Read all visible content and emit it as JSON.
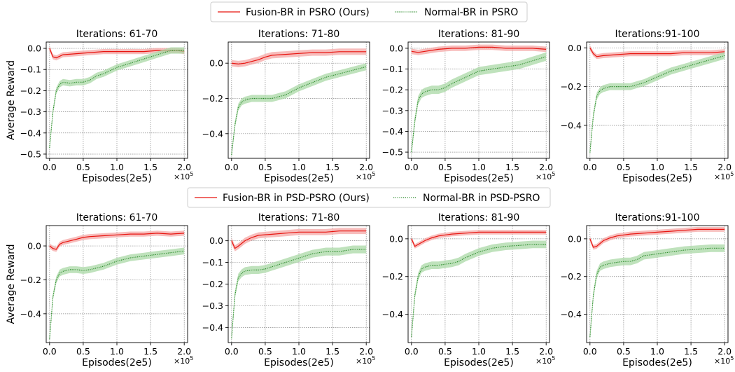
{
  "legends": [
    {
      "entries": [
        {
          "label": "Fusion-BR in PSRO (Ours)",
          "color": "#e8140f",
          "style": "solid"
        },
        {
          "label": "Normal-BR in PSRO",
          "color": "#2a8a2a",
          "style": "dotted"
        }
      ]
    },
    {
      "entries": [
        {
          "label": "Fusion-BR in PSD-PSRO (Ours)",
          "color": "#e8140f",
          "style": "solid"
        },
        {
          "label": "Normal-BR in PSD-PSRO",
          "color": "#2a8a2a",
          "style": "dotted"
        }
      ]
    }
  ],
  "chart_data": [
    {
      "type": "line",
      "row": 0,
      "title": "Iterations: 61-70",
      "xlabel": "Episodes(2e5)",
      "ylabel": "Average Reward",
      "x_multiplier": "×10",
      "x_multiplier_exp": "5",
      "xlim": [
        -0.05,
        2.05
      ],
      "ylim": [
        -0.52,
        0.03
      ],
      "xticks": [
        0.0,
        0.5,
        1.0,
        1.5,
        2.0
      ],
      "xtick_labels": [
        "0.0",
        "0.5",
        "1.0",
        "1.5",
        "2.0"
      ],
      "yticks": [
        0.0,
        -0.1,
        -0.2,
        -0.3,
        -0.4,
        -0.5
      ],
      "ytick_labels": [
        "0.0",
        "−0.1",
        "−0.2",
        "−0.3",
        "−0.4",
        "−0.5"
      ],
      "grid": true,
      "series": [
        {
          "name": "Fusion-BR in PSRO (Ours)",
          "x": [
            0,
            0.05,
            0.1,
            0.2,
            0.4,
            0.6,
            0.8,
            1.0,
            1.2,
            1.4,
            1.6,
            1.8,
            1.9,
            2.0
          ],
          "y": [
            0.0,
            -0.04,
            -0.045,
            -0.03,
            -0.025,
            -0.02,
            -0.015,
            -0.015,
            -0.015,
            -0.015,
            -0.01,
            -0.01,
            -0.01,
            -0.015
          ],
          "band": 0.012
        },
        {
          "name": "Normal-BR in PSRO",
          "x": [
            0,
            0.05,
            0.1,
            0.15,
            0.2,
            0.3,
            0.4,
            0.5,
            0.6,
            0.7,
            0.8,
            1.0,
            1.2,
            1.4,
            1.6,
            1.8,
            2.0
          ],
          "y": [
            -0.47,
            -0.3,
            -0.2,
            -0.17,
            -0.16,
            -0.165,
            -0.16,
            -0.16,
            -0.15,
            -0.13,
            -0.12,
            -0.09,
            -0.07,
            -0.05,
            -0.03,
            -0.01,
            -0.01
          ],
          "band": 0.015
        }
      ]
    },
    {
      "type": "line",
      "row": 0,
      "title": "Iterations: 71-80",
      "xlabel": "Episodes(2e5)",
      "ylabel": "",
      "x_multiplier": "×10",
      "x_multiplier_exp": "5",
      "xlim": [
        -0.05,
        2.05
      ],
      "ylim": [
        -0.54,
        0.12
      ],
      "xticks": [
        0.0,
        0.5,
        1.0,
        1.5,
        2.0
      ],
      "xtick_labels": [
        "0.0",
        "0.5",
        "1.0",
        "1.5",
        "2.0"
      ],
      "yticks": [
        0.0,
        -0.2,
        -0.4
      ],
      "ytick_labels": [
        "0.0",
        "−0.2",
        "−0.4"
      ],
      "grid": true,
      "series": [
        {
          "name": "Fusion-BR in PSRO (Ours)",
          "x": [
            0,
            0.1,
            0.2,
            0.3,
            0.4,
            0.5,
            0.6,
            0.8,
            1.0,
            1.2,
            1.4,
            1.6,
            1.8,
            2.0
          ],
          "y": [
            0.0,
            -0.005,
            0.0,
            0.01,
            0.02,
            0.035,
            0.045,
            0.05,
            0.055,
            0.06,
            0.06,
            0.065,
            0.065,
            0.065
          ],
          "band": 0.018
        },
        {
          "name": "Normal-BR in PSRO",
          "x": [
            0,
            0.05,
            0.1,
            0.15,
            0.2,
            0.3,
            0.4,
            0.5,
            0.6,
            0.7,
            0.8,
            1.0,
            1.2,
            1.4,
            1.6,
            1.8,
            2.0
          ],
          "y": [
            -0.52,
            -0.35,
            -0.25,
            -0.22,
            -0.21,
            -0.2,
            -0.2,
            -0.2,
            -0.2,
            -0.19,
            -0.18,
            -0.14,
            -0.11,
            -0.08,
            -0.06,
            -0.04,
            -0.02
          ],
          "band": 0.02
        }
      ]
    },
    {
      "type": "line",
      "row": 0,
      "title": "Iterations: 81-90",
      "xlabel": "Episodes(2e5)",
      "ylabel": "",
      "x_multiplier": "×10",
      "x_multiplier_exp": "5",
      "xlim": [
        -0.05,
        2.05
      ],
      "ylim": [
        -0.53,
        0.03
      ],
      "xticks": [
        0.0,
        0.5,
        1.0,
        1.5,
        2.0
      ],
      "xtick_labels": [
        "0.0",
        "0.5",
        "1.0",
        "1.5",
        "2.0"
      ],
      "yticks": [
        0.0,
        -0.1,
        -0.2,
        -0.3,
        -0.4,
        -0.5
      ],
      "ytick_labels": [
        "0.0",
        "−0.1",
        "−0.2",
        "−0.3",
        "−0.4",
        "−0.5"
      ],
      "grid": true,
      "series": [
        {
          "name": "Fusion-BR in PSRO (Ours)",
          "x": [
            0,
            0.1,
            0.2,
            0.4,
            0.6,
            0.8,
            1.0,
            1.2,
            1.4,
            1.6,
            1.8,
            2.0
          ],
          "y": [
            -0.015,
            -0.02,
            -0.015,
            -0.005,
            0.0,
            0.0,
            0.005,
            0.005,
            0.0,
            0.0,
            0.0,
            -0.005
          ],
          "band": 0.013
        },
        {
          "name": "Normal-BR in PSRO",
          "x": [
            0,
            0.05,
            0.1,
            0.15,
            0.2,
            0.3,
            0.4,
            0.5,
            0.6,
            0.8,
            1.0,
            1.2,
            1.4,
            1.6,
            1.8,
            2.0
          ],
          "y": [
            -0.5,
            -0.35,
            -0.25,
            -0.22,
            -0.21,
            -0.2,
            -0.2,
            -0.19,
            -0.17,
            -0.14,
            -0.11,
            -0.1,
            -0.09,
            -0.08,
            -0.06,
            -0.04
          ],
          "band": 0.02
        }
      ]
    },
    {
      "type": "line",
      "row": 0,
      "title": "Iterations:91-100",
      "xlabel": "Episodes(2e5)",
      "ylabel": "",
      "x_multiplier": "×10",
      "x_multiplier_exp": "5",
      "xlim": [
        -0.05,
        2.05
      ],
      "ylim": [
        -0.57,
        0.03
      ],
      "xticks": [
        0.0,
        0.5,
        1.0,
        1.5,
        2.0
      ],
      "xtick_labels": [
        "0.0",
        "0.5",
        "1.0",
        "1.5",
        "2.0"
      ],
      "yticks": [
        0.0,
        -0.2,
        -0.4
      ],
      "ytick_labels": [
        "0.0",
        "−0.2",
        "−0.4"
      ],
      "grid": true,
      "series": [
        {
          "name": "Fusion-BR in PSRO (Ours)",
          "x": [
            0,
            0.05,
            0.1,
            0.2,
            0.4,
            0.6,
            0.8,
            1.0,
            1.2,
            1.4,
            1.6,
            1.8,
            2.0
          ],
          "y": [
            0.0,
            -0.03,
            -0.045,
            -0.04,
            -0.035,
            -0.03,
            -0.03,
            -0.03,
            -0.03,
            -0.025,
            -0.025,
            -0.025,
            -0.02
          ],
          "band": 0.013
        },
        {
          "name": "Normal-BR in PSRO",
          "x": [
            0,
            0.05,
            0.1,
            0.15,
            0.2,
            0.3,
            0.4,
            0.5,
            0.6,
            0.7,
            0.8,
            1.0,
            1.2,
            1.4,
            1.6,
            1.8,
            2.0
          ],
          "y": [
            -0.54,
            -0.35,
            -0.25,
            -0.22,
            -0.21,
            -0.2,
            -0.2,
            -0.2,
            -0.2,
            -0.19,
            -0.18,
            -0.15,
            -0.12,
            -0.1,
            -0.08,
            -0.06,
            -0.04
          ],
          "band": 0.018
        }
      ]
    },
    {
      "type": "line",
      "row": 1,
      "title": "Iterations: 61-70",
      "xlabel": "Episodes(2e5)",
      "ylabel": "Average Reward",
      "x_multiplier": "×10",
      "x_multiplier_exp": "5",
      "xlim": [
        -0.05,
        2.05
      ],
      "ylim": [
        -0.57,
        0.12
      ],
      "xticks": [
        0.0,
        0.5,
        1.0,
        1.5,
        2.0
      ],
      "xtick_labels": [
        "0.0",
        "0.5",
        "1.0",
        "1.5",
        "2.0"
      ],
      "yticks": [
        0.0,
        -0.2,
        -0.4
      ],
      "ytick_labels": [
        "0.0",
        "−0.2",
        "−0.4"
      ],
      "grid": true,
      "series": [
        {
          "name": "Fusion-BR in PSD-PSRO (Ours)",
          "x": [
            0,
            0.05,
            0.1,
            0.15,
            0.2,
            0.3,
            0.4,
            0.5,
            0.6,
            0.8,
            1.0,
            1.2,
            1.4,
            1.6,
            1.8,
            2.0
          ],
          "y": [
            0.0,
            -0.015,
            -0.02,
            0.01,
            0.02,
            0.03,
            0.04,
            0.05,
            0.055,
            0.06,
            0.065,
            0.07,
            0.07,
            0.075,
            0.07,
            0.075
          ],
          "band": 0.015
        },
        {
          "name": "Normal-BR in PSD-PSRO",
          "x": [
            0,
            0.05,
            0.1,
            0.15,
            0.2,
            0.3,
            0.4,
            0.5,
            0.6,
            0.7,
            0.8,
            1.0,
            1.2,
            1.4,
            1.6,
            1.8,
            2.0
          ],
          "y": [
            -0.55,
            -0.3,
            -0.2,
            -0.16,
            -0.15,
            -0.14,
            -0.14,
            -0.145,
            -0.14,
            -0.13,
            -0.12,
            -0.09,
            -0.07,
            -0.06,
            -0.05,
            -0.04,
            -0.03
          ],
          "band": 0.02
        }
      ]
    },
    {
      "type": "line",
      "row": 1,
      "title": "Iterations: 71-80",
      "xlabel": "Episodes(2e5)",
      "ylabel": "",
      "x_multiplier": "×10",
      "x_multiplier_exp": "5",
      "xlim": [
        -0.05,
        2.05
      ],
      "ylim": [
        -0.47,
        0.07
      ],
      "xticks": [
        0.0,
        0.5,
        1.0,
        1.5,
        2.0
      ],
      "xtick_labels": [
        "0.0",
        "0.5",
        "1.0",
        "1.5",
        "2.0"
      ],
      "yticks": [
        0.0,
        -0.1,
        -0.2,
        -0.3,
        -0.4
      ],
      "ytick_labels": [
        "0.0",
        "−0.1",
        "−0.2",
        "−0.3",
        "−0.4"
      ],
      "grid": true,
      "series": [
        {
          "name": "Fusion-BR in PSD-PSRO (Ours)",
          "x": [
            0,
            0.05,
            0.1,
            0.2,
            0.3,
            0.4,
            0.6,
            0.8,
            1.0,
            1.2,
            1.4,
            1.6,
            1.8,
            2.0
          ],
          "y": [
            0.0,
            -0.035,
            -0.025,
            0.0,
            0.015,
            0.025,
            0.03,
            0.035,
            0.04,
            0.04,
            0.04,
            0.045,
            0.045,
            0.045
          ],
          "band": 0.014
        },
        {
          "name": "Normal-BR in PSD-PSRO",
          "x": [
            0,
            0.05,
            0.1,
            0.15,
            0.2,
            0.3,
            0.4,
            0.5,
            0.6,
            0.7,
            0.8,
            1.0,
            1.2,
            1.4,
            1.6,
            1.8,
            2.0
          ],
          "y": [
            -0.45,
            -0.25,
            -0.17,
            -0.15,
            -0.14,
            -0.135,
            -0.135,
            -0.13,
            -0.12,
            -0.11,
            -0.1,
            -0.08,
            -0.06,
            -0.05,
            -0.05,
            -0.04,
            -0.04
          ],
          "band": 0.018
        }
      ]
    },
    {
      "type": "line",
      "row": 1,
      "title": "Iterations: 81-90",
      "xlabel": "Episodes(2e5)",
      "ylabel": "",
      "x_multiplier": "×10",
      "x_multiplier_exp": "5",
      "xlim": [
        -0.05,
        2.05
      ],
      "ylim": [
        -0.55,
        0.07
      ],
      "xticks": [
        0.0,
        0.5,
        1.0,
        1.5,
        2.0
      ],
      "xtick_labels": [
        "0.0",
        "0.5",
        "1.0",
        "1.5",
        "2.0"
      ],
      "yticks": [
        0.0,
        -0.2,
        -0.4
      ],
      "ytick_labels": [
        "0.0",
        "−0.2",
        "−0.4"
      ],
      "grid": true,
      "series": [
        {
          "name": "Fusion-BR in PSD-PSRO (Ours)",
          "x": [
            0,
            0.05,
            0.1,
            0.2,
            0.3,
            0.4,
            0.6,
            0.8,
            1.0,
            1.2,
            1.4,
            1.6,
            1.8,
            2.0
          ],
          "y": [
            0.0,
            -0.04,
            -0.03,
            -0.01,
            0.005,
            0.015,
            0.025,
            0.03,
            0.035,
            0.035,
            0.035,
            0.035,
            0.035,
            0.035
          ],
          "band": 0.012
        },
        {
          "name": "Normal-BR in PSD-PSRO",
          "x": [
            0,
            0.05,
            0.1,
            0.15,
            0.2,
            0.3,
            0.4,
            0.5,
            0.6,
            0.7,
            0.8,
            1.0,
            1.2,
            1.4,
            1.6,
            1.8,
            2.0
          ],
          "y": [
            -0.52,
            -0.3,
            -0.2,
            -0.16,
            -0.15,
            -0.14,
            -0.14,
            -0.135,
            -0.13,
            -0.12,
            -0.1,
            -0.07,
            -0.05,
            -0.04,
            -0.035,
            -0.03,
            -0.03
          ],
          "band": 0.02
        }
      ]
    },
    {
      "type": "line",
      "row": 1,
      "title": "Iterations:91-100",
      "xlabel": "Episodes(2e5)",
      "ylabel": "",
      "x_multiplier": "×10",
      "x_multiplier_exp": "5",
      "xlim": [
        -0.05,
        2.05
      ],
      "ylim": [
        -0.55,
        0.07
      ],
      "xticks": [
        0.0,
        0.5,
        1.0,
        1.5,
        2.0
      ],
      "xtick_labels": [
        "0.0",
        "0.5",
        "1.0",
        "1.5",
        "2.0"
      ],
      "yticks": [
        0.0,
        -0.2,
        -0.4
      ],
      "ytick_labels": [
        "0.0",
        "−0.2",
        "−0.4"
      ],
      "grid": true,
      "series": [
        {
          "name": "Fusion-BR in PSD-PSRO (Ours)",
          "x": [
            0,
            0.05,
            0.1,
            0.2,
            0.3,
            0.4,
            0.6,
            0.8,
            1.0,
            1.2,
            1.4,
            1.6,
            1.8,
            2.0
          ],
          "y": [
            0.0,
            -0.045,
            -0.04,
            -0.01,
            0.005,
            0.015,
            0.025,
            0.03,
            0.035,
            0.04,
            0.045,
            0.05,
            0.05,
            0.05
          ],
          "band": 0.013
        },
        {
          "name": "Normal-BR in PSD-PSRO",
          "x": [
            0,
            0.05,
            0.1,
            0.15,
            0.2,
            0.3,
            0.4,
            0.5,
            0.6,
            0.7,
            0.8,
            1.0,
            1.2,
            1.4,
            1.6,
            1.8,
            2.0
          ],
          "y": [
            -0.52,
            -0.3,
            -0.19,
            -0.15,
            -0.14,
            -0.13,
            -0.125,
            -0.12,
            -0.12,
            -0.11,
            -0.09,
            -0.08,
            -0.07,
            -0.06,
            -0.055,
            -0.05,
            -0.05
          ],
          "band": 0.02
        }
      ]
    }
  ]
}
